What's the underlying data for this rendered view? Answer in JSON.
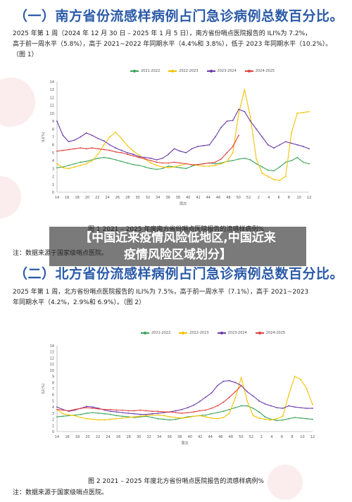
{
  "section1": {
    "title": "（一）南方省份流感样病例占门急诊病例总数百分比。",
    "para_line1": "2025 年第 1 周（2024 年 12 月 30 日 – 2025 年 1 月 5 日），南方省份哨点医院报告的 ILI%为 7.2%，",
    "para_line2": "高于前一周水平（5.8%），高于 2021~2022 年同期水平（4.4%和 3.8%），低于 2023 年同期水平（10.2%）。",
    "para_line3": "（图 1）",
    "caption": "图 1    2021 – 2025 年度南方省份哨点医院报告的流感样病例%",
    "note": "注：数据来源于国家级哨点医院。"
  },
  "section2": {
    "title": "（二）北方省份流感样病例占门急诊病例总数百分比。",
    "para_line1": "2025 年第 1 周，北方省份哨点医院报告的 ILI%为 7.5%，高于前一周水平（7.1%），高于 2021~2023",
    "para_line2": "年同期水平（4.2%，2.9%和 6.9%）。（图 2）",
    "caption": "图 2    2021 – 2025 年度北方省份哨点医院报告的流感样病例%",
    "note": "注：数据来源于国家级哨点医院。"
  },
  "overlay": {
    "line1": "【中国近来疫情风险低地区,中国近来",
    "line2": "疫情风险区域划分】"
  },
  "colors": {
    "s2021": "#3aa55a",
    "s2022": "#f2c200",
    "s2023": "#6a3aa8",
    "s2024": "#e04040"
  },
  "chart_data": [
    {
      "type": "line",
      "ylabel": "ILI(%)",
      "xlabel": "周次",
      "ylim": [
        0,
        14
      ],
      "yticks": [
        "0",
        "1",
        "2",
        "3",
        "4",
        "5",
        "6",
        "7",
        "8",
        "9",
        "10",
        "11",
        "12",
        "13",
        "14"
      ],
      "x_labels": [
        "14",
        "16",
        "18",
        "20",
        "22",
        "24",
        "26",
        "28",
        "30",
        "32",
        "34",
        "36",
        "38",
        "40",
        "42",
        "44",
        "46",
        "48",
        "50",
        "52",
        "2",
        "4",
        "6",
        "8",
        "10",
        "12"
      ],
      "legend": [
        "2021-2022",
        "2022-2023",
        "2023-2024",
        "2024-2025"
      ],
      "series": [
        {
          "name": "2021-2022",
          "values": [
            3.1,
            3.2,
            3.4,
            3.6,
            3.8,
            3.9,
            4.1,
            4.3,
            4.4,
            4.3,
            4.1,
            3.9,
            3.7,
            3.5,
            3.4,
            3.2,
            3.0,
            2.9,
            3.0,
            3.3,
            3.2,
            3.1,
            3.0,
            3.3,
            3.5,
            3.6,
            3.7,
            3.6,
            3.7,
            3.9,
            4.0,
            4.2,
            4.3,
            4.1,
            3.6,
            3.2,
            2.8,
            2.7,
            3.2,
            3.8,
            4.0,
            4.4,
            3.8,
            3.6
          ]
        },
        {
          "name": "2022-2023",
          "values": [
            3.6,
            3.1,
            3.0,
            3.2,
            3.4,
            3.6,
            4.0,
            4.8,
            6.0,
            7.0,
            7.6,
            6.8,
            5.9,
            5.2,
            4.7,
            4.2,
            3.7,
            3.4,
            3.2,
            3.1,
            3.2,
            3.4,
            3.6,
            3.5,
            3.4,
            3.3,
            3.3,
            3.4,
            3.6,
            3.9,
            5.0,
            10.0,
            13.0,
            9.5,
            4.2,
            2.4,
            2.0,
            1.6,
            1.5,
            2.0,
            7.5,
            10.0,
            10.1,
            10.2
          ]
        },
        {
          "name": "2023-2024",
          "values": [
            9.0,
            7.2,
            6.4,
            6.6,
            7.0,
            7.5,
            7.2,
            6.8,
            6.5,
            6.0,
            5.6,
            5.3,
            5.0,
            4.8,
            4.5,
            4.4,
            4.3,
            4.1,
            4.3,
            4.8,
            5.5,
            5.2,
            5.0,
            5.5,
            5.8,
            5.9,
            6.0,
            7.0,
            8.2,
            9.0,
            9.1,
            10.5,
            10.2,
            9.0,
            8.0,
            7.0,
            6.0,
            5.6,
            6.0,
            6.4,
            6.2,
            6.0,
            5.8,
            5.5
          ]
        },
        {
          "name": "2024-2025",
          "values": [
            5.2,
            5.3,
            5.4,
            5.5,
            5.6,
            5.5,
            5.6,
            5.5,
            5.4,
            5.3,
            5.1,
            5.0,
            4.8,
            4.6,
            4.4,
            4.2,
            4.0,
            3.8,
            3.7,
            3.7,
            3.8,
            3.7,
            3.6,
            3.5,
            3.5,
            3.6,
            3.7,
            3.8,
            4.2,
            5.0,
            5.8,
            7.2
          ]
        }
      ]
    },
    {
      "type": "line",
      "ylabel": "ILI(%)",
      "xlabel": "周次",
      "ylim": [
        0,
        14
      ],
      "yticks": [
        "0",
        "1",
        "2",
        "3",
        "4",
        "5",
        "6",
        "7",
        "8",
        "9",
        "10",
        "11",
        "12",
        "13",
        "14"
      ],
      "x_labels": [
        "14",
        "16",
        "18",
        "20",
        "22",
        "24",
        "26",
        "28",
        "30",
        "32",
        "34",
        "36",
        "38",
        "40",
        "42",
        "44",
        "46",
        "48",
        "50",
        "52",
        "2",
        "4",
        "6",
        "8",
        "10",
        "12"
      ],
      "legend": [
        "2021-2022",
        "2022-2023",
        "2023-2024",
        "2024-2025"
      ],
      "series": [
        {
          "name": "2021-2022",
          "values": [
            2.4,
            2.5,
            2.6,
            2.7,
            2.8,
            3.0,
            3.1,
            3.0,
            2.9,
            2.8,
            2.6,
            2.5,
            2.4,
            2.3,
            2.4,
            2.5,
            2.3,
            2.1,
            2.0,
            1.9,
            2.0,
            2.2,
            2.4,
            2.5,
            2.6,
            2.7,
            2.9,
            3.1,
            3.3,
            3.6,
            3.9,
            4.2,
            4.2,
            3.8,
            3.2,
            2.4,
            2.0,
            1.8,
            1.9,
            2.1,
            2.3,
            2.2,
            2.1,
            2.0
          ]
        },
        {
          "name": "2022-2023",
          "values": [
            3.6,
            2.9,
            2.7,
            2.6,
            2.3,
            2.1,
            2.0,
            1.9,
            1.9,
            2.0,
            2.1,
            2.2,
            2.3,
            2.4,
            2.5,
            2.6,
            2.7,
            2.7,
            2.6,
            2.4,
            2.3,
            2.2,
            2.3,
            2.5,
            2.6,
            2.4,
            2.2,
            2.1,
            2.3,
            3.0,
            5.5,
            8.8,
            5.0,
            2.6,
            2.2,
            2.0,
            1.9,
            2.1,
            2.5,
            6.0,
            9.0,
            8.5,
            7.0,
            4.4
          ]
        },
        {
          "name": "2023-2024",
          "values": [
            4.0,
            3.6,
            3.3,
            3.5,
            3.8,
            4.1,
            4.0,
            3.8,
            3.5,
            3.3,
            3.2,
            3.1,
            3.0,
            2.9,
            2.8,
            2.8,
            2.9,
            3.0,
            3.1,
            3.2,
            3.4,
            3.6,
            3.9,
            4.3,
            4.9,
            5.6,
            6.3,
            7.5,
            8.2,
            8.3,
            8.0,
            7.5,
            6.5,
            5.8,
            5.0,
            4.5,
            4.2,
            3.9,
            3.8,
            4.2,
            4.0,
            3.9,
            3.8,
            3.8
          ]
        },
        {
          "name": "2024-2025",
          "values": [
            3.6,
            3.5,
            3.4,
            3.6,
            3.8,
            3.9,
            3.8,
            3.7,
            3.6,
            3.6,
            3.5,
            3.5,
            3.4,
            3.4,
            3.5,
            3.4,
            3.3,
            3.3,
            3.2,
            3.2,
            3.1,
            3.0,
            3.1,
            3.2,
            3.4,
            3.5,
            3.8,
            4.2,
            4.8,
            5.6,
            6.5,
            7.5
          ]
        }
      ]
    }
  ]
}
